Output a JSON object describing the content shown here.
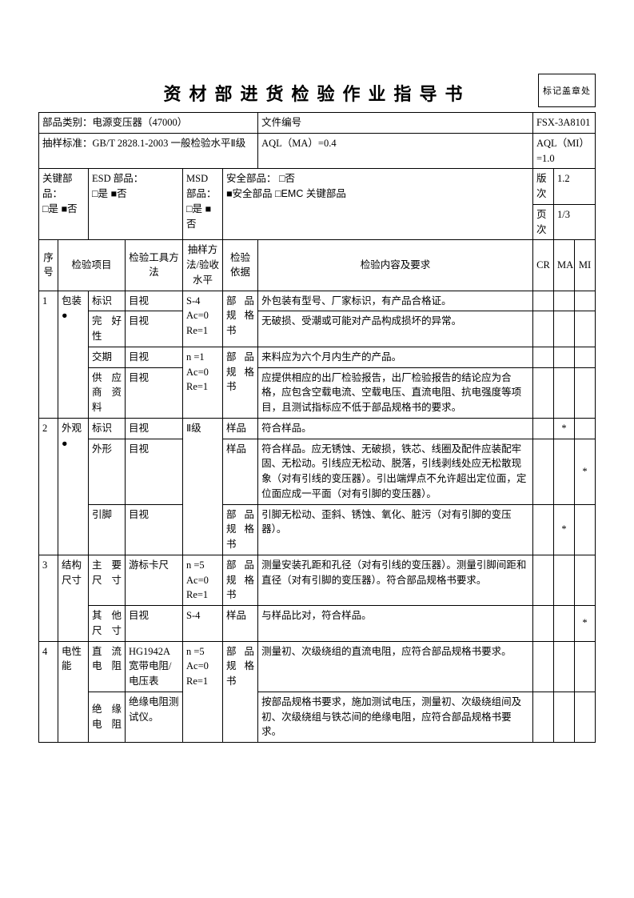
{
  "title": "资材部进货检验作业指导书",
  "stamp": "标记盖章处",
  "header": {
    "category_label": "部品类别：",
    "category_value": "电源变压器（47000）",
    "docno_label": "文件编号",
    "docno_value": "FSX-3A8101",
    "sampling_label": "抽样标准：",
    "sampling_value": "GB/T 2828.1-2003  一般检验水平Ⅱ级",
    "aql_ma": "AQL（MA）=0.4",
    "aql_mi": "AQL（MI）=1.0",
    "key_label": "关键部品：",
    "key_value": "□是 ■否",
    "esd_label": "ESD 部品：",
    "esd_value": "□是 ■否",
    "msd_label": "MSD 部品：",
    "msd_value": "□是 ■否",
    "safety_label": "安全部品：  □否",
    "safety_value": "■安全部品 □EMC 关键部品",
    "rev_label": "版    次",
    "rev_value": "1.2",
    "page_label": "页    次",
    "page_value": "1/3"
  },
  "colhdr": {
    "seq": "序号",
    "item": "检验项目",
    "tool": "检验工具方法",
    "sampling": "抽样方法/验收水平",
    "basis": "检验依据",
    "req": "检验内容及要求",
    "cr": "CR",
    "ma": "MA",
    "mi": "MI"
  },
  "rows": {
    "r1_seq": "1",
    "r1_item": "包装●",
    "r1a_sub": "标识",
    "r1a_tool": "目视",
    "r1a_samp": "S-4\nAc=0\nRe=1",
    "r1a_basis": "部品规格书",
    "r1a_req": "外包装有型号、厂家标识，有产品合格证。",
    "r1b_sub": "完好性",
    "r1b_tool": "目视",
    "r1b_req": "无破损、受潮或可能对产品构成损坏的异常。",
    "r1c_sub": "交期",
    "r1c_tool": "目视",
    "r1c_samp": "n =1\nAc=0\nRe=1",
    "r1c_basis": "部品规格书",
    "r1c_req": "来料应为六个月内生产的产品。",
    "r1d_sub": "供应商资料",
    "r1d_tool": "目视",
    "r1d_req": "应提供相应的出厂检验报告，出厂检验报告的结论应为合格，应包含空载电流、空载电压、直流电阻、抗电强度等项目，且测试指标应不低于部品规格书的要求。",
    "r2_seq": "2",
    "r2_item": "外观●",
    "r2a_sub": "标识",
    "r2a_tool": "目视",
    "r2a_samp": "Ⅱ级",
    "r2a_basis": "样品",
    "r2a_req": "符合样品。",
    "r2a_ma": "*",
    "r2b_sub": "外形",
    "r2b_tool": "目视",
    "r2b_basis": "样品",
    "r2b_req": "符合样品。应无锈蚀、无破损，铁芯、线圈及配件应装配牢固、无松动。引线应无松动、脱落，引线剥线处应无松散现象（对有引线的变压器）。引出端焊点不允许超出定位面，定位面应成一平面（对有引脚的变压器）。",
    "r2b_mi": "*",
    "r2c_sub": "引脚",
    "r2c_tool": "目视",
    "r2c_basis": "部品规格书",
    "r2c_req": "引脚无松动、歪斜、锈蚀、氧化、脏污（对有引脚的变压器）。",
    "r2c_ma": "*",
    "r3_seq": "3",
    "r3_item": "结构尺寸",
    "r3a_sub": "主要尺寸",
    "r3a_tool": "游标卡尺",
    "r3a_samp": "n =5\nAc=0\nRe=1",
    "r3a_basis": "部品规格书",
    "r3a_req": "测量安装孔距和孔径（对有引线的变压器）。测量引脚间距和直径（对有引脚的变压器）。符合部品规格书要求。",
    "r3b_sub": "其他尺寸",
    "r3b_tool": "目视",
    "r3b_samp": "S-4",
    "r3b_basis": "样品",
    "r3b_req": "与样品比对，符合样品。",
    "r3b_mi": "*",
    "r4_seq": "4",
    "r4_item": "电性能",
    "r4a_sub": "直流电阻",
    "r4a_tool": "HG1942A 宽带电阻/电压表",
    "r4a_samp": "n =5\nAc=0\nRe=1",
    "r4a_basis": "部品规格书",
    "r4a_req": "测量初、次级绕组的直流电阻，应符合部品规格书要求。",
    "r4b_sub": "绝缘电阻",
    "r4b_tool": "绝缘电阻测试仪。",
    "r4b_req": "按部品规格书要求，施加测试电压，测量初、次级绕组间及初、次级绕组与铁芯间的绝缘电阻，应符合部品规格书要求。"
  }
}
